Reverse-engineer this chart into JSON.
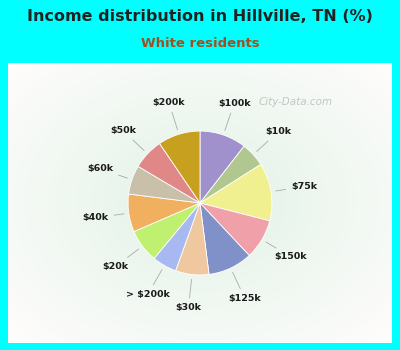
{
  "title": "Income distribution in Hillville, TN (%)",
  "subtitle": "White residents",
  "title_color": "#222222",
  "subtitle_color": "#a05020",
  "bg_color": "#00ffff",
  "panel_color": "#e0f0e8",
  "watermark": "City-Data.com",
  "slices": [
    {
      "label": "$100k",
      "value": 10.5,
      "color": "#a090cc"
    },
    {
      "label": "$10k",
      "value": 5.5,
      "color": "#b0c890"
    },
    {
      "label": "$75k",
      "value": 13.0,
      "color": "#f0f090"
    },
    {
      "label": "$150k",
      "value": 9.0,
      "color": "#f0a0a8"
    },
    {
      "label": "$125k",
      "value": 10.0,
      "color": "#8090c8"
    },
    {
      "label": "$30k",
      "value": 7.5,
      "color": "#f0c8a0"
    },
    {
      "label": "> $200k",
      "value": 5.5,
      "color": "#a8b8f0"
    },
    {
      "label": "$20k",
      "value": 7.5,
      "color": "#c0f070"
    },
    {
      "label": "$40k",
      "value": 8.5,
      "color": "#f0b060"
    },
    {
      "label": "$60k",
      "value": 6.5,
      "color": "#c8c0a8"
    },
    {
      "label": "$50k",
      "value": 7.0,
      "color": "#e08888"
    },
    {
      "label": "$200k",
      "value": 9.5,
      "color": "#c8a020"
    }
  ],
  "start_angle": 90,
  "figsize": [
    4.0,
    3.5
  ],
  "dpi": 100
}
